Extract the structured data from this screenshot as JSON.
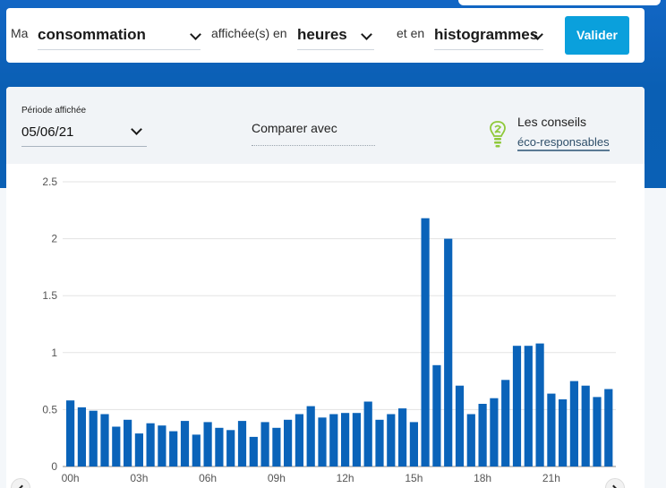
{
  "selector": {
    "prefix": "Ma",
    "metric": "consommation",
    "mid_text": "affichée(s) en",
    "unit": "heures",
    "and_text": "et en",
    "view": "histogrammes",
    "submit_label": "Valider"
  },
  "options": {
    "period_label": "Période affichée",
    "period_value": "05/06/21",
    "compare_label": "Comparer avec",
    "tips_line1": "Les conseils",
    "tips_line2": "éco-responsables"
  },
  "colors": {
    "bar": "#0a63b9",
    "accent": "#0aa0dc",
    "bulb": "#8fc93a"
  },
  "chart_data": {
    "type": "bar",
    "ylim": [
      0,
      2.5
    ],
    "y_ticks": [
      "0",
      "0.5",
      "1",
      "1.5",
      "2",
      "2.5"
    ],
    "x_tick_labels": [
      "00h",
      "03h",
      "06h",
      "09h",
      "12h",
      "15h",
      "18h",
      "21h"
    ],
    "values": [
      0.58,
      0.52,
      0.49,
      0.46,
      0.35,
      0.41,
      0.29,
      0.38,
      0.36,
      0.31,
      0.4,
      0.28,
      0.39,
      0.34,
      0.32,
      0.4,
      0.26,
      0.39,
      0.34,
      0.41,
      0.46,
      0.53,
      0.43,
      0.46,
      0.47,
      0.47,
      0.57,
      0.41,
      0.46,
      0.51,
      0.39,
      2.18,
      0.89,
      2.0,
      0.71,
      0.46,
      0.55,
      0.6,
      0.76,
      1.06,
      1.06,
      1.08,
      0.64,
      0.59,
      0.75,
      0.71,
      0.61,
      0.68
    ]
  }
}
